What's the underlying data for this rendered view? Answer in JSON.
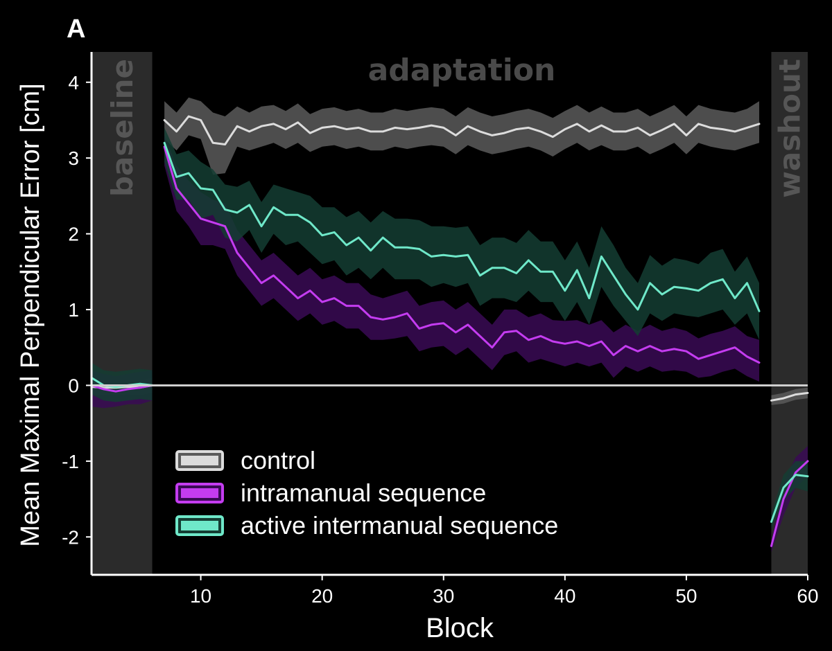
{
  "chart_data": {
    "type": "line",
    "panel_label": "A",
    "xlabel": "Block",
    "ylabel": "Mean Maximal Perpendicular Error [cm]",
    "xlim": [
      1,
      60
    ],
    "ylim": [
      -2.5,
      4.4
    ],
    "xticks": [
      10,
      20,
      30,
      40,
      50,
      60
    ],
    "yticks": [
      -2,
      -1,
      0,
      1,
      2,
      3,
      4
    ],
    "grid": false,
    "legend_position": "bottom-left",
    "phases": [
      {
        "name": "baseline",
        "start": 1,
        "end": 6
      },
      {
        "name": "adaptation",
        "start": 6,
        "end": 57
      },
      {
        "name": "washout",
        "start": 57,
        "end": 60
      }
    ],
    "series": [
      {
        "name": "control",
        "color": "#dcdcdc",
        "band_color": "#5a5a5a",
        "segments": [
          {
            "x": [
              1,
              2,
              3,
              4,
              5,
              6
            ],
            "mean": [
              -0.02,
              -0.03,
              -0.03,
              -0.02,
              -0.03,
              0.0
            ],
            "lower": [
              -0.12,
              -0.13,
              -0.13,
              -0.12,
              -0.13,
              -0.1
            ],
            "upper": [
              0.08,
              0.07,
              0.07,
              0.08,
              0.07,
              0.1
            ]
          },
          {
            "x": [
              7,
              8,
              9,
              10,
              11,
              12,
              13,
              14,
              15,
              16,
              17,
              18,
              19,
              20,
              21,
              22,
              23,
              24,
              25,
              26,
              27,
              28,
              29,
              30,
              31,
              32,
              33,
              34,
              35,
              36,
              37,
              38,
              39,
              40,
              41,
              42,
              43,
              44,
              45,
              46,
              47,
              48,
              49,
              50,
              51,
              52,
              53,
              54,
              55,
              56
            ],
            "mean": [
              3.5,
              3.35,
              3.55,
              3.5,
              3.2,
              3.18,
              3.42,
              3.35,
              3.42,
              3.45,
              3.38,
              3.47,
              3.33,
              3.4,
              3.42,
              3.38,
              3.4,
              3.35,
              3.35,
              3.4,
              3.38,
              3.4,
              3.43,
              3.4,
              3.3,
              3.42,
              3.35,
              3.3,
              3.33,
              3.38,
              3.4,
              3.35,
              3.28,
              3.38,
              3.45,
              3.35,
              3.43,
              3.35,
              3.35,
              3.4,
              3.3,
              3.37,
              3.45,
              3.3,
              3.45,
              3.4,
              3.38,
              3.35,
              3.4,
              3.45
            ],
            "lower": [
              3.25,
              3.1,
              3.3,
              3.25,
              2.78,
              2.8,
              3.15,
              3.1,
              3.15,
              3.2,
              3.12,
              3.2,
              3.08,
              3.15,
              3.17,
              3.12,
              3.15,
              3.1,
              3.1,
              3.15,
              3.12,
              3.15,
              3.17,
              3.15,
              3.05,
              3.17,
              3.1,
              3.05,
              3.08,
              3.12,
              3.15,
              3.1,
              3.02,
              3.12,
              3.2,
              3.1,
              3.17,
              3.1,
              3.1,
              3.15,
              3.05,
              3.12,
              3.2,
              3.05,
              3.2,
              3.15,
              3.12,
              3.1,
              3.15,
              3.2
            ],
            "upper": [
              3.75,
              3.6,
              3.8,
              3.75,
              3.6,
              3.55,
              3.68,
              3.6,
              3.68,
              3.7,
              3.62,
              3.72,
              3.58,
              3.65,
              3.67,
              3.62,
              3.65,
              3.6,
              3.6,
              3.65,
              3.62,
              3.65,
              3.67,
              3.65,
              3.55,
              3.67,
              3.6,
              3.55,
              3.58,
              3.62,
              3.65,
              3.6,
              3.53,
              3.62,
              3.7,
              3.6,
              3.68,
              3.6,
              3.6,
              3.65,
              3.55,
              3.62,
              3.7,
              3.55,
              3.7,
              3.65,
              3.62,
              3.6,
              3.65,
              3.75
            ]
          },
          {
            "x": [
              57,
              58,
              59,
              60
            ],
            "mean": [
              -0.2,
              -0.17,
              -0.12,
              -0.1
            ],
            "lower": [
              -0.26,
              -0.24,
              -0.19,
              -0.17
            ],
            "upper": [
              -0.13,
              -0.1,
              -0.05,
              -0.03
            ]
          }
        ]
      },
      {
        "name": "intramanual sequence",
        "color": "#c43cf0",
        "band_color": "#3a0a55",
        "segments": [
          {
            "x": [
              1,
              2,
              3,
              4,
              5,
              6
            ],
            "mean": [
              0.0,
              -0.05,
              -0.08,
              -0.05,
              -0.03,
              0.0
            ],
            "lower": [
              -0.28,
              -0.3,
              -0.28,
              -0.25,
              -0.25,
              -0.2
            ],
            "upper": [
              0.2,
              0.15,
              0.12,
              0.15,
              0.18,
              0.2
            ]
          },
          {
            "x": [
              7,
              8,
              9,
              10,
              11,
              12,
              13,
              14,
              15,
              16,
              17,
              18,
              19,
              20,
              21,
              22,
              23,
              24,
              25,
              26,
              27,
              28,
              29,
              30,
              31,
              32,
              33,
              34,
              35,
              36,
              37,
              38,
              39,
              40,
              41,
              42,
              43,
              44,
              45,
              46,
              47,
              48,
              49,
              50,
              51,
              52,
              53,
              54,
              55,
              56
            ],
            "mean": [
              3.15,
              2.6,
              2.4,
              2.2,
              2.15,
              2.1,
              1.75,
              1.55,
              1.35,
              1.45,
              1.3,
              1.15,
              1.25,
              1.1,
              1.15,
              1.05,
              1.05,
              0.9,
              0.87,
              0.9,
              0.95,
              0.75,
              0.8,
              0.82,
              0.7,
              0.8,
              0.65,
              0.5,
              0.7,
              0.72,
              0.6,
              0.65,
              0.58,
              0.55,
              0.58,
              0.52,
              0.58,
              0.4,
              0.52,
              0.45,
              0.52,
              0.45,
              0.48,
              0.45,
              0.35,
              0.4,
              0.45,
              0.5,
              0.38,
              0.3
            ],
            "lower": [
              2.9,
              2.3,
              2.1,
              1.85,
              1.85,
              1.8,
              1.45,
              1.25,
              1.05,
              1.15,
              1.0,
              0.85,
              0.95,
              0.8,
              0.85,
              0.75,
              0.75,
              0.6,
              0.6,
              0.62,
              0.65,
              0.45,
              0.5,
              0.52,
              0.4,
              0.5,
              0.35,
              0.2,
              0.4,
              0.45,
              0.3,
              0.35,
              0.3,
              0.25,
              0.3,
              0.25,
              0.3,
              0.1,
              0.25,
              0.18,
              0.25,
              0.18,
              0.2,
              0.18,
              0.1,
              0.12,
              0.18,
              0.22,
              0.12,
              0.05
            ],
            "upper": [
              3.3,
              2.9,
              2.7,
              2.55,
              2.45,
              2.4,
              2.05,
              1.85,
              1.65,
              1.75,
              1.6,
              1.45,
              1.55,
              1.4,
              1.45,
              1.35,
              1.35,
              1.2,
              1.15,
              1.2,
              1.25,
              1.05,
              1.1,
              1.12,
              1.0,
              1.1,
              0.95,
              0.8,
              1.0,
              1.0,
              0.9,
              0.95,
              0.86,
              0.85,
              0.86,
              0.8,
              0.86,
              0.7,
              0.8,
              0.72,
              0.8,
              0.72,
              0.76,
              0.72,
              0.62,
              0.68,
              0.72,
              0.78,
              0.65,
              0.6
            ]
          },
          {
            "x": [
              57,
              58,
              59,
              60
            ],
            "mean": [
              -2.12,
              -1.5,
              -1.15,
              -1.0
            ],
            "lower": [
              -2.2,
              -1.72,
              -1.35,
              -1.2
            ],
            "upper": [
              -2.05,
              -1.3,
              -0.95,
              -0.8
            ]
          }
        ]
      },
      {
        "name": "active intermanual sequence",
        "color": "#6fe8c9",
        "band_color": "#143d33",
        "segments": [
          {
            "x": [
              1,
              2,
              3,
              4,
              5,
              6
            ],
            "mean": [
              0.1,
              0.0,
              -0.02,
              0.0,
              0.02,
              0.0
            ],
            "lower": [
              -0.12,
              -0.2,
              -0.22,
              -0.2,
              -0.18,
              -0.2
            ],
            "upper": [
              0.3,
              0.2,
              0.18,
              0.2,
              0.22,
              0.2
            ]
          },
          {
            "x": [
              7,
              8,
              9,
              10,
              11,
              12,
              13,
              14,
              15,
              16,
              17,
              18,
              19,
              20,
              21,
              22,
              23,
              24,
              25,
              26,
              27,
              28,
              29,
              30,
              31,
              32,
              33,
              34,
              35,
              36,
              37,
              38,
              39,
              40,
              41,
              42,
              43,
              44,
              45,
              46,
              47,
              48,
              49,
              50,
              51,
              52,
              53,
              54,
              55,
              56
            ],
            "mean": [
              3.2,
              2.75,
              2.8,
              2.6,
              2.58,
              2.32,
              2.28,
              2.38,
              2.1,
              2.35,
              2.25,
              2.25,
              2.15,
              1.98,
              2.02,
              1.85,
              1.95,
              1.78,
              1.95,
              1.82,
              1.82,
              1.8,
              1.7,
              1.72,
              1.7,
              1.72,
              1.45,
              1.55,
              1.55,
              1.48,
              1.65,
              1.5,
              1.5,
              1.25,
              1.52,
              1.15,
              1.7,
              1.45,
              1.2,
              1.0,
              1.35,
              1.2,
              1.3,
              1.28,
              1.25,
              1.35,
              1.4,
              1.15,
              1.35,
              0.98
            ],
            "lower": [
              2.95,
              2.45,
              2.45,
              2.2,
              2.25,
              1.95,
              1.9,
              2.05,
              1.75,
              2.0,
              1.85,
              1.9,
              1.75,
              1.6,
              1.65,
              1.45,
              1.55,
              1.4,
              1.55,
              1.4,
              1.4,
              1.4,
              1.3,
              1.35,
              1.3,
              1.35,
              1.05,
              1.15,
              1.15,
              1.1,
              1.25,
              1.1,
              1.1,
              0.85,
              1.1,
              0.8,
              1.3,
              1.05,
              0.85,
              0.65,
              0.95,
              0.85,
              0.95,
              0.92,
              0.9,
              0.95,
              1.0,
              0.8,
              0.95,
              0.6
            ],
            "upper": [
              3.4,
              3.05,
              3.1,
              2.95,
              2.85,
              2.65,
              2.62,
              2.7,
              2.42,
              2.65,
              2.6,
              2.55,
              2.5,
              2.35,
              2.35,
              2.22,
              2.3,
              2.15,
              2.3,
              2.2,
              2.2,
              2.18,
              2.1,
              2.1,
              2.08,
              2.1,
              1.85,
              1.95,
              1.95,
              1.88,
              2.05,
              1.9,
              1.9,
              1.65,
              1.9,
              1.55,
              2.1,
              1.85,
              1.55,
              1.35,
              1.72,
              1.58,
              1.68,
              1.65,
              1.6,
              1.75,
              1.8,
              1.5,
              1.7,
              1.35
            ]
          },
          {
            "x": [
              57,
              58,
              59,
              60
            ],
            "mean": [
              -1.8,
              -1.35,
              -1.18,
              -1.2
            ],
            "lower": [
              -1.9,
              -1.52,
              -1.35,
              -1.4
            ],
            "upper": [
              -1.7,
              -1.18,
              -1.0,
              -1.0
            ]
          }
        ]
      }
    ]
  }
}
